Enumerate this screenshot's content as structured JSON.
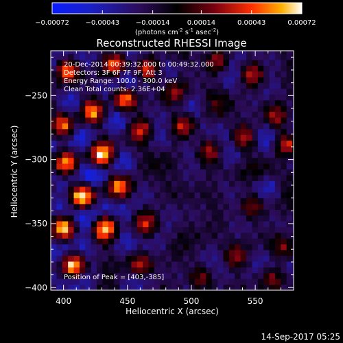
{
  "chart_data": {
    "type": "heatmap",
    "title": "Reconstructed RHESSI Image",
    "xlabel": "Heliocentric X (arcsec)",
    "ylabel": "Heliocentric Y (arcsec)",
    "xlim": [
      390,
      580
    ],
    "ylim": [
      -402,
      -215
    ],
    "xticks": [
      400,
      450,
      500,
      550
    ],
    "yticks": [
      -250,
      -300,
      -350,
      -400
    ],
    "grid": false,
    "colorbar": {
      "ticks": [
        "-0.00072",
        "-0.00043",
        "-0.00014",
        "0.00014",
        "0.00043",
        "0.00072"
      ],
      "unit_prefix": "(photons cm",
      "unit_exp1": "-2",
      "unit_mid": " s",
      "unit_exp2": "-1",
      "unit_mid2": " asec",
      "unit_exp3": "-2",
      "unit_suffix": ")",
      "range": [
        -0.00072,
        0.00072
      ]
    },
    "annotations": {
      "time": "20-Dec-2014 00:39:32.000 to 00:49:32.000",
      "detectors": "Detectors: 3F 6F 7F 9F, Att 3",
      "energy": "Energy Range: 100.0 - 300.0 keV",
      "clean": "Clean    Total counts: 2.36E+04",
      "peak": "Position of Peak = [403,-385]"
    },
    "timestamp": "14-Sep-2017 05:25",
    "blobs": [
      {
        "x": 405,
        "y": -385,
        "v": 1.0
      },
      {
        "x": 398,
        "y": -355,
        "v": 0.85
      },
      {
        "x": 430,
        "y": -355,
        "v": 0.75
      },
      {
        "x": 412,
        "y": -332,
        "v": 0.8
      },
      {
        "x": 400,
        "y": -305,
        "v": 0.8
      },
      {
        "x": 428,
        "y": -300,
        "v": 0.85
      },
      {
        "x": 440,
        "y": -322,
        "v": 0.7
      },
      {
        "x": 398,
        "y": -275,
        "v": 0.75
      },
      {
        "x": 420,
        "y": -265,
        "v": 0.85
      },
      {
        "x": 445,
        "y": -255,
        "v": 0.8
      },
      {
        "x": 400,
        "y": -232,
        "v": 0.85
      },
      {
        "x": 440,
        "y": -228,
        "v": 0.8
      },
      {
        "x": 462,
        "y": -232,
        "v": 0.7
      },
      {
        "x": 458,
        "y": -278,
        "v": 0.6
      },
      {
        "x": 458,
        "y": -385,
        "v": 0.55
      },
      {
        "x": 462,
        "y": -352,
        "v": 0.45
      },
      {
        "x": 492,
        "y": -275,
        "v": 0.55
      },
      {
        "x": 486,
        "y": -250,
        "v": 0.45
      },
      {
        "x": 518,
        "y": -225,
        "v": 0.5
      },
      {
        "x": 545,
        "y": -235,
        "v": 0.55
      },
      {
        "x": 572,
        "y": -290,
        "v": 0.7
      },
      {
        "x": 565,
        "y": -270,
        "v": 0.55
      },
      {
        "x": 512,
        "y": -295,
        "v": 0.5
      },
      {
        "x": 538,
        "y": -285,
        "v": 0.45
      },
      {
        "x": 545,
        "y": -338,
        "v": 0.5
      },
      {
        "x": 532,
        "y": -378,
        "v": 0.45
      },
      {
        "x": 505,
        "y": -395,
        "v": 0.4
      },
      {
        "x": 570,
        "y": -372,
        "v": 0.4
      },
      {
        "x": 562,
        "y": -395,
        "v": 0.4
      },
      {
        "x": 522,
        "y": -322,
        "v": -0.2
      },
      {
        "x": 560,
        "y": -322,
        "v": -0.3
      },
      {
        "x": 485,
        "y": -340,
        "v": -0.1
      }
    ]
  }
}
